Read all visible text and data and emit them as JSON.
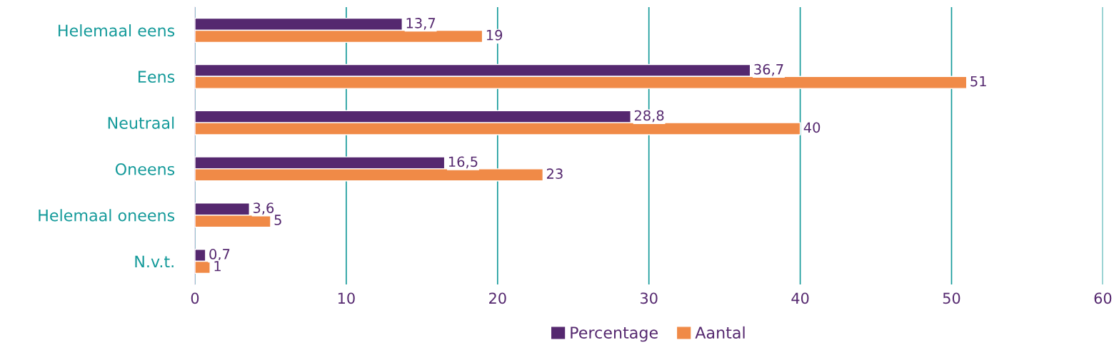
{
  "chart_data": {
    "type": "bar",
    "orientation": "horizontal",
    "categories": [
      "Helemaal eens",
      "Eens",
      "Neutraal",
      "Oneens",
      "Helemaal oneens",
      "N.v.t."
    ],
    "series": [
      {
        "name": "Percentage",
        "color": "#55286f",
        "values": [
          13.7,
          36.7,
          28.8,
          16.5,
          3.6,
          0.7
        ],
        "value_labels": [
          "13,7",
          "36,7",
          "28,8",
          "16,5",
          "3,6",
          "0,7"
        ]
      },
      {
        "name": "Aantal",
        "color": "#f08a47",
        "values": [
          19,
          51,
          40,
          23,
          5,
          1
        ],
        "value_labels": [
          "19",
          "51",
          "40",
          "23",
          "5",
          "1"
        ]
      }
    ],
    "xlim": [
      0,
      60
    ],
    "xticks": [
      0,
      10,
      20,
      30,
      40,
      50,
      60
    ],
    "grid": "x",
    "legend": "bottom"
  }
}
